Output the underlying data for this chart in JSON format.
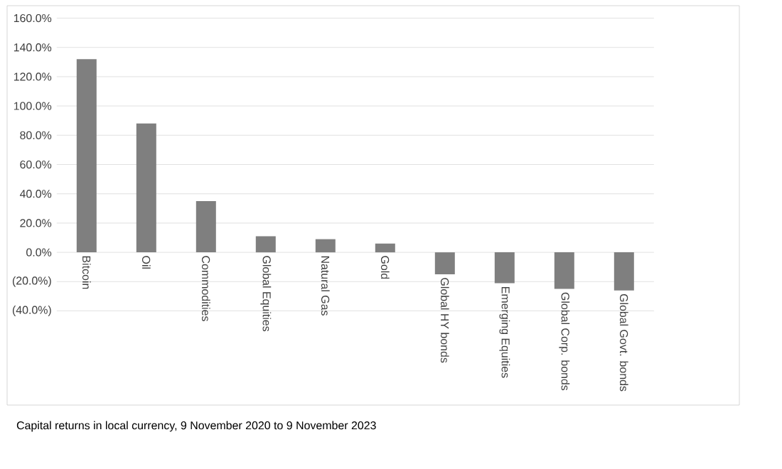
{
  "chart_data": {
    "type": "bar",
    "categories": [
      "Bitcoin",
      "Oil",
      "Commodities",
      "Global Equities",
      "Natural Gas",
      "Gold",
      "Global HY bonds",
      "Emerging Equities",
      "Global Corp. bonds",
      "Global Govt. bonds"
    ],
    "values": [
      132,
      88,
      35,
      11,
      9,
      6,
      -15,
      -21,
      -25,
      -26
    ],
    "color": "#7f7f7f",
    "ylim": [
      -40,
      160
    ],
    "yticks": [
      {
        "value": -40,
        "label": "(40.0%)"
      },
      {
        "value": -20,
        "label": "(20.0%)"
      },
      {
        "value": 0,
        "label": "0.0%"
      },
      {
        "value": 20,
        "label": "20.0%"
      },
      {
        "value": 40,
        "label": "40.0%"
      },
      {
        "value": 60,
        "label": "60.0%"
      },
      {
        "value": 80,
        "label": "80.0%"
      },
      {
        "value": 100,
        "label": "100.0%"
      },
      {
        "value": 120,
        "label": "120.0%"
      },
      {
        "value": 140,
        "label": "140.0%"
      },
      {
        "value": 160,
        "label": "160.0%"
      }
    ],
    "grid": "y",
    "annotations": [
      "Capital returns in local currency, 9 November 2020 to 9 November 2023"
    ]
  }
}
